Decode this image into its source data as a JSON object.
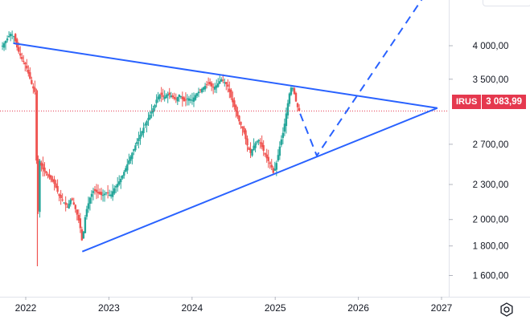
{
  "chart_data": {
    "type": "candlestick",
    "symbol": "IRUS",
    "last_price": "3 083,99",
    "last_price_value": 3083.99,
    "x_ticks": [
      "2022",
      "2023",
      "2024",
      "2025",
      "2026",
      "2027"
    ],
    "x_tick_years": [
      2022,
      2023,
      2024,
      2025,
      2026,
      2027
    ],
    "y_ticks": [
      {
        "label": "4 000,00",
        "value": 4000
      },
      {
        "label": "3 500,00",
        "value": 3500
      },
      {
        "label": "2 700,00",
        "value": 2700
      },
      {
        "label": "2 300,00",
        "value": 2300
      },
      {
        "label": "2 000,00",
        "value": 2000
      },
      {
        "label": "1 800,00",
        "value": 1800
      },
      {
        "label": "1 600,00",
        "value": 1600
      }
    ],
    "y_range": [
      1470,
      4800
    ],
    "x_range": [
      2021.7,
      2027.7
    ],
    "y_scale": "log",
    "colors": {
      "up": "#26a69a",
      "down": "#ef5350",
      "trend": "#2962ff",
      "price_line": "#e5384e",
      "label": "#e5384e"
    },
    "trendlines": [
      {
        "name": "upper-resistance",
        "style": "solid",
        "points": [
          [
            2021.85,
            4040
          ],
          [
            2026.95,
            3120
          ]
        ]
      },
      {
        "name": "lower-support",
        "style": "solid",
        "points": [
          [
            2022.68,
            1760
          ],
          [
            2026.95,
            3120
          ]
        ]
      },
      {
        "name": "forecast-path",
        "style": "dashed",
        "points": [
          [
            2025.3,
            3050
          ],
          [
            2025.5,
            2580
          ],
          [
            2026.8,
            4900
          ]
        ]
      }
    ],
    "price_path": [
      [
        2021.72,
        4000
      ],
      [
        2021.78,
        4120
      ],
      [
        2021.82,
        4200
      ],
      [
        2021.86,
        4150
      ],
      [
        2021.9,
        3950
      ],
      [
        2021.95,
        3800
      ],
      [
        2022.0,
        3700
      ],
      [
        2022.04,
        3550
      ],
      [
        2022.08,
        3400
      ],
      [
        2022.12,
        3300
      ],
      [
        2022.14,
        1680
      ],
      [
        2022.16,
        2550
      ],
      [
        2022.2,
        2450
      ],
      [
        2022.25,
        2400
      ],
      [
        2022.3,
        2350
      ],
      [
        2022.35,
        2300
      ],
      [
        2022.4,
        2200
      ],
      [
        2022.45,
        2150
      ],
      [
        2022.5,
        2100
      ],
      [
        2022.55,
        2180
      ],
      [
        2022.6,
        2080
      ],
      [
        2022.65,
        1960
      ],
      [
        2022.68,
        1820
      ],
      [
        2022.72,
        2050
      ],
      [
        2022.78,
        2200
      ],
      [
        2022.82,
        2250
      ],
      [
        2022.87,
        2220
      ],
      [
        2022.92,
        2200
      ],
      [
        2022.97,
        2230
      ],
      [
        2023.02,
        2200
      ],
      [
        2023.06,
        2260
      ],
      [
        2023.1,
        2300
      ],
      [
        2023.15,
        2360
      ],
      [
        2023.2,
        2450
      ],
      [
        2023.25,
        2550
      ],
      [
        2023.3,
        2650
      ],
      [
        2023.35,
        2750
      ],
      [
        2023.4,
        2850
      ],
      [
        2023.45,
        2950
      ],
      [
        2023.5,
        3050
      ],
      [
        2023.55,
        3150
      ],
      [
        2023.58,
        3250
      ],
      [
        2023.62,
        3300
      ],
      [
        2023.66,
        3250
      ],
      [
        2023.7,
        3300
      ],
      [
        2023.75,
        3280
      ],
      [
        2023.8,
        3220
      ],
      [
        2023.85,
        3300
      ],
      [
        2023.9,
        3200
      ],
      [
        2023.95,
        3250
      ],
      [
        2024.0,
        3220
      ],
      [
        2024.05,
        3300
      ],
      [
        2024.1,
        3350
      ],
      [
        2024.15,
        3400
      ],
      [
        2024.2,
        3450
      ],
      [
        2024.25,
        3380
      ],
      [
        2024.3,
        3420
      ],
      [
        2024.35,
        3500
      ],
      [
        2024.4,
        3450
      ],
      [
        2024.43,
        3400
      ],
      [
        2024.47,
        3250
      ],
      [
        2024.52,
        3100
      ],
      [
        2024.57,
        2950
      ],
      [
        2024.62,
        2850
      ],
      [
        2024.66,
        2700
      ],
      [
        2024.7,
        2600
      ],
      [
        2024.75,
        2700
      ],
      [
        2024.8,
        2750
      ],
      [
        2024.85,
        2650
      ],
      [
        2024.9,
        2550
      ],
      [
        2024.95,
        2480
      ],
      [
        2024.98,
        2400
      ],
      [
        2025.02,
        2520
      ],
      [
        2025.06,
        2700
      ],
      [
        2025.1,
        2850
      ],
      [
        2025.14,
        3100
      ],
      [
        2025.17,
        3300
      ],
      [
        2025.2,
        3420
      ],
      [
        2025.23,
        3300
      ],
      [
        2025.26,
        3150
      ],
      [
        2025.29,
        3084
      ]
    ]
  }
}
